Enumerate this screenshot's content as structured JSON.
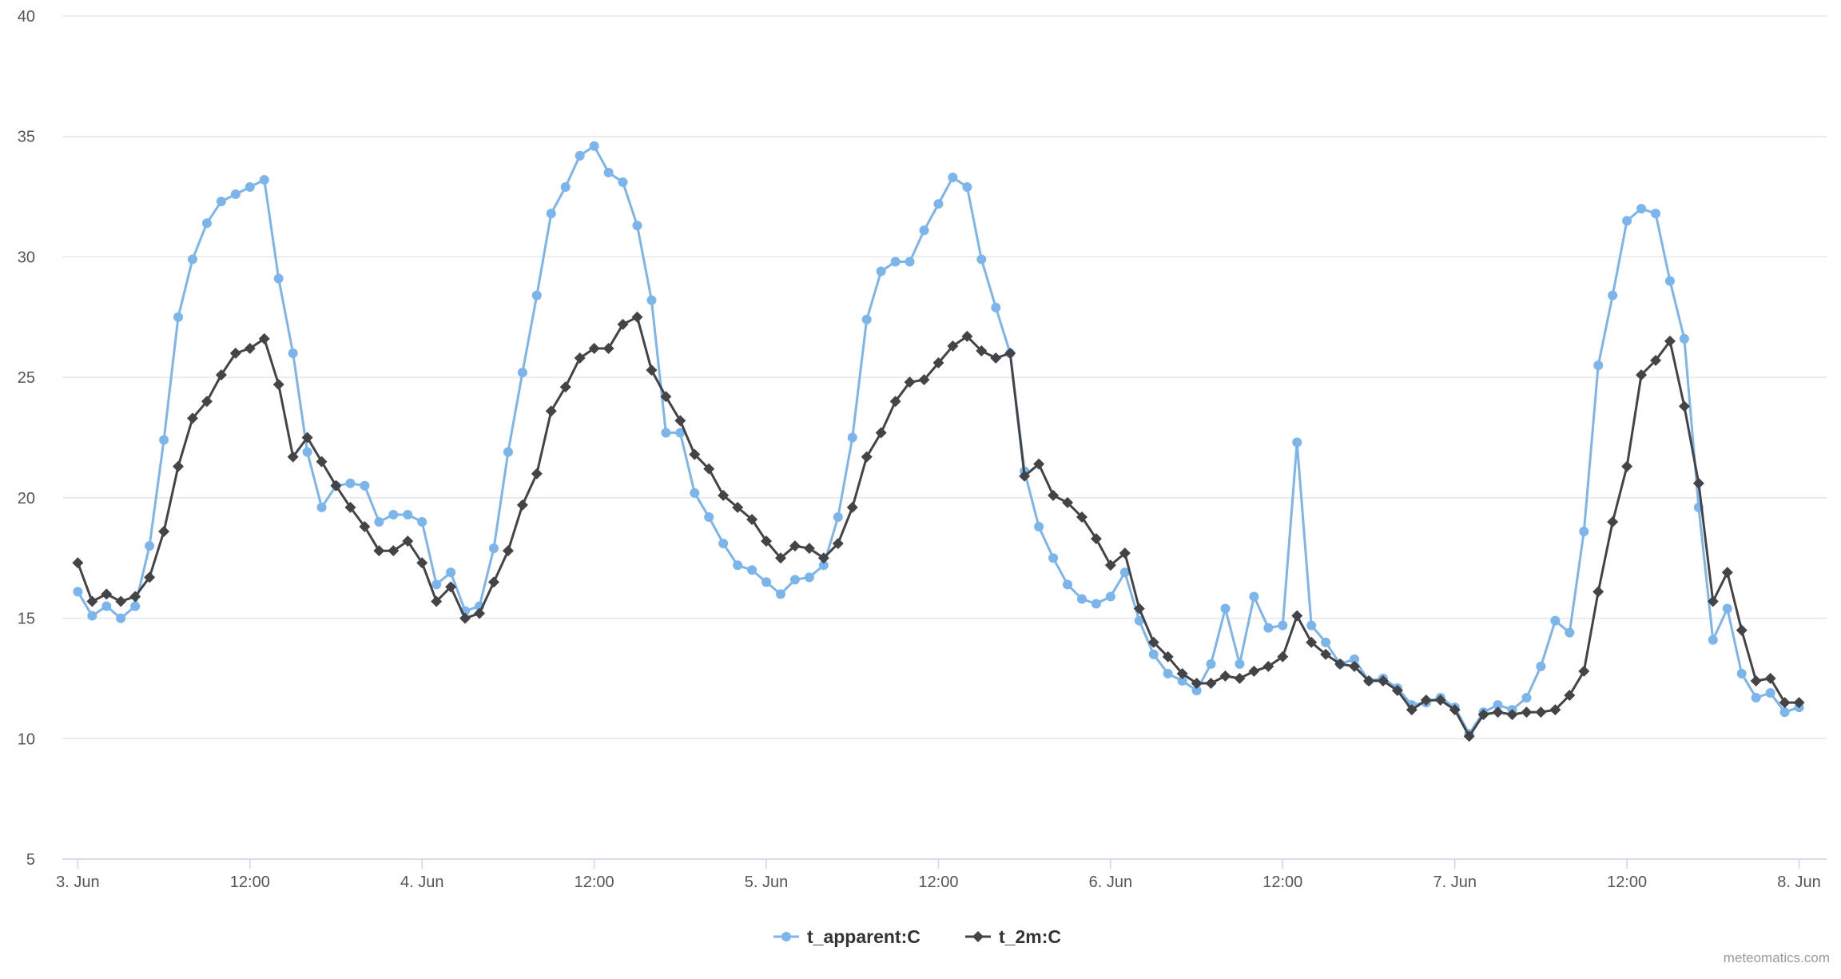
{
  "chart_data": {
    "type": "line",
    "title": "",
    "xlabel": "",
    "ylabel": "",
    "ylim": [
      5,
      40
    ],
    "yticks": [
      5,
      10,
      15,
      20,
      25,
      30,
      35,
      40
    ],
    "xlim": [
      -0.045,
      5.08
    ],
    "xticks": [
      {
        "x": 0,
        "label": "3. Jun"
      },
      {
        "x": 0.5,
        "label": "12:00"
      },
      {
        "x": 1,
        "label": "4. Jun"
      },
      {
        "x": 1.5,
        "label": "12:00"
      },
      {
        "x": 2,
        "label": "5. Jun"
      },
      {
        "x": 2.5,
        "label": "12:00"
      },
      {
        "x": 3,
        "label": "6. Jun"
      },
      {
        "x": 3.5,
        "label": "12:00"
      },
      {
        "x": 4,
        "label": "7. Jun"
      },
      {
        "x": 4.5,
        "label": "12:00"
      },
      {
        "x": 5,
        "label": "8. Jun"
      }
    ],
    "x_step_hours": 1,
    "grid": true,
    "legend": "bottom-center",
    "series": [
      {
        "name": "t_apparent:C",
        "color": "#7cb5ec",
        "marker": "circle",
        "values": [
          16.1,
          15.1,
          15.5,
          15.0,
          15.5,
          18.0,
          22.4,
          27.5,
          29.9,
          31.4,
          32.3,
          32.6,
          32.9,
          33.2,
          29.1,
          26.0,
          21.9,
          19.6,
          20.5,
          20.6,
          20.5,
          19.0,
          19.3,
          19.3,
          19.0,
          16.4,
          16.9,
          15.3,
          15.5,
          17.9,
          21.9,
          25.2,
          28.4,
          31.8,
          32.9,
          34.2,
          34.6,
          33.5,
          33.1,
          31.3,
          28.2,
          22.7,
          22.7,
          20.2,
          19.2,
          18.1,
          17.2,
          17.0,
          16.5,
          16.0,
          16.6,
          16.7,
          17.2,
          19.2,
          22.5,
          27.4,
          29.4,
          29.8,
          29.8,
          31.1,
          32.2,
          33.3,
          32.9,
          29.9,
          27.9,
          26.0,
          21.1,
          18.8,
          17.5,
          16.4,
          15.8,
          15.6,
          15.9,
          16.9,
          14.9,
          13.5,
          12.7,
          12.4,
          12.0,
          13.1,
          15.4,
          13.1,
          15.9,
          14.6,
          14.7,
          22.3,
          14.7,
          14.0,
          13.1,
          13.3,
          12.4,
          12.5,
          12.1,
          11.4,
          11.5,
          11.7,
          11.3,
          10.2,
          11.1,
          11.4,
          11.2,
          11.7,
          13.0,
          14.9,
          14.4,
          18.6,
          25.5,
          28.4,
          31.5,
          32.0,
          31.8,
          29.0,
          26.6,
          19.6,
          14.1,
          15.4,
          12.7,
          11.7,
          11.9,
          11.1,
          11.3
        ]
      },
      {
        "name": "t_2m:C",
        "color": "#434348",
        "marker": "diamond",
        "values": [
          17.3,
          15.7,
          16.0,
          15.7,
          15.9,
          16.7,
          18.6,
          21.3,
          23.3,
          24.0,
          25.1,
          26.0,
          26.2,
          26.6,
          24.7,
          21.7,
          22.5,
          21.5,
          20.5,
          19.6,
          18.8,
          17.8,
          17.8,
          18.2,
          17.3,
          15.7,
          16.3,
          15.0,
          15.2,
          16.5,
          17.8,
          19.7,
          21.0,
          23.6,
          24.6,
          25.8,
          26.2,
          26.2,
          27.2,
          27.5,
          25.3,
          24.2,
          23.2,
          21.8,
          21.2,
          20.1,
          19.6,
          19.1,
          18.2,
          17.5,
          18.0,
          17.9,
          17.5,
          18.1,
          19.6,
          21.7,
          22.7,
          24.0,
          24.8,
          24.9,
          25.6,
          26.3,
          26.7,
          26.1,
          25.8,
          26.0,
          20.9,
          21.4,
          20.1,
          19.8,
          19.2,
          18.3,
          17.2,
          17.7,
          15.4,
          14.0,
          13.4,
          12.7,
          12.3,
          12.3,
          12.6,
          12.5,
          12.8,
          13.0,
          13.4,
          15.1,
          14.0,
          13.5,
          13.1,
          13.0,
          12.4,
          12.4,
          12.0,
          11.2,
          11.6,
          11.6,
          11.2,
          10.1,
          11.0,
          11.1,
          11.0,
          11.1,
          11.1,
          11.2,
          11.8,
          12.8,
          16.1,
          19.0,
          21.3,
          25.1,
          25.7,
          26.5,
          23.8,
          20.6,
          15.7,
          16.9,
          14.5,
          12.4,
          12.5,
          11.5,
          11.5
        ]
      }
    ]
  },
  "credit": "meteomatics.com"
}
